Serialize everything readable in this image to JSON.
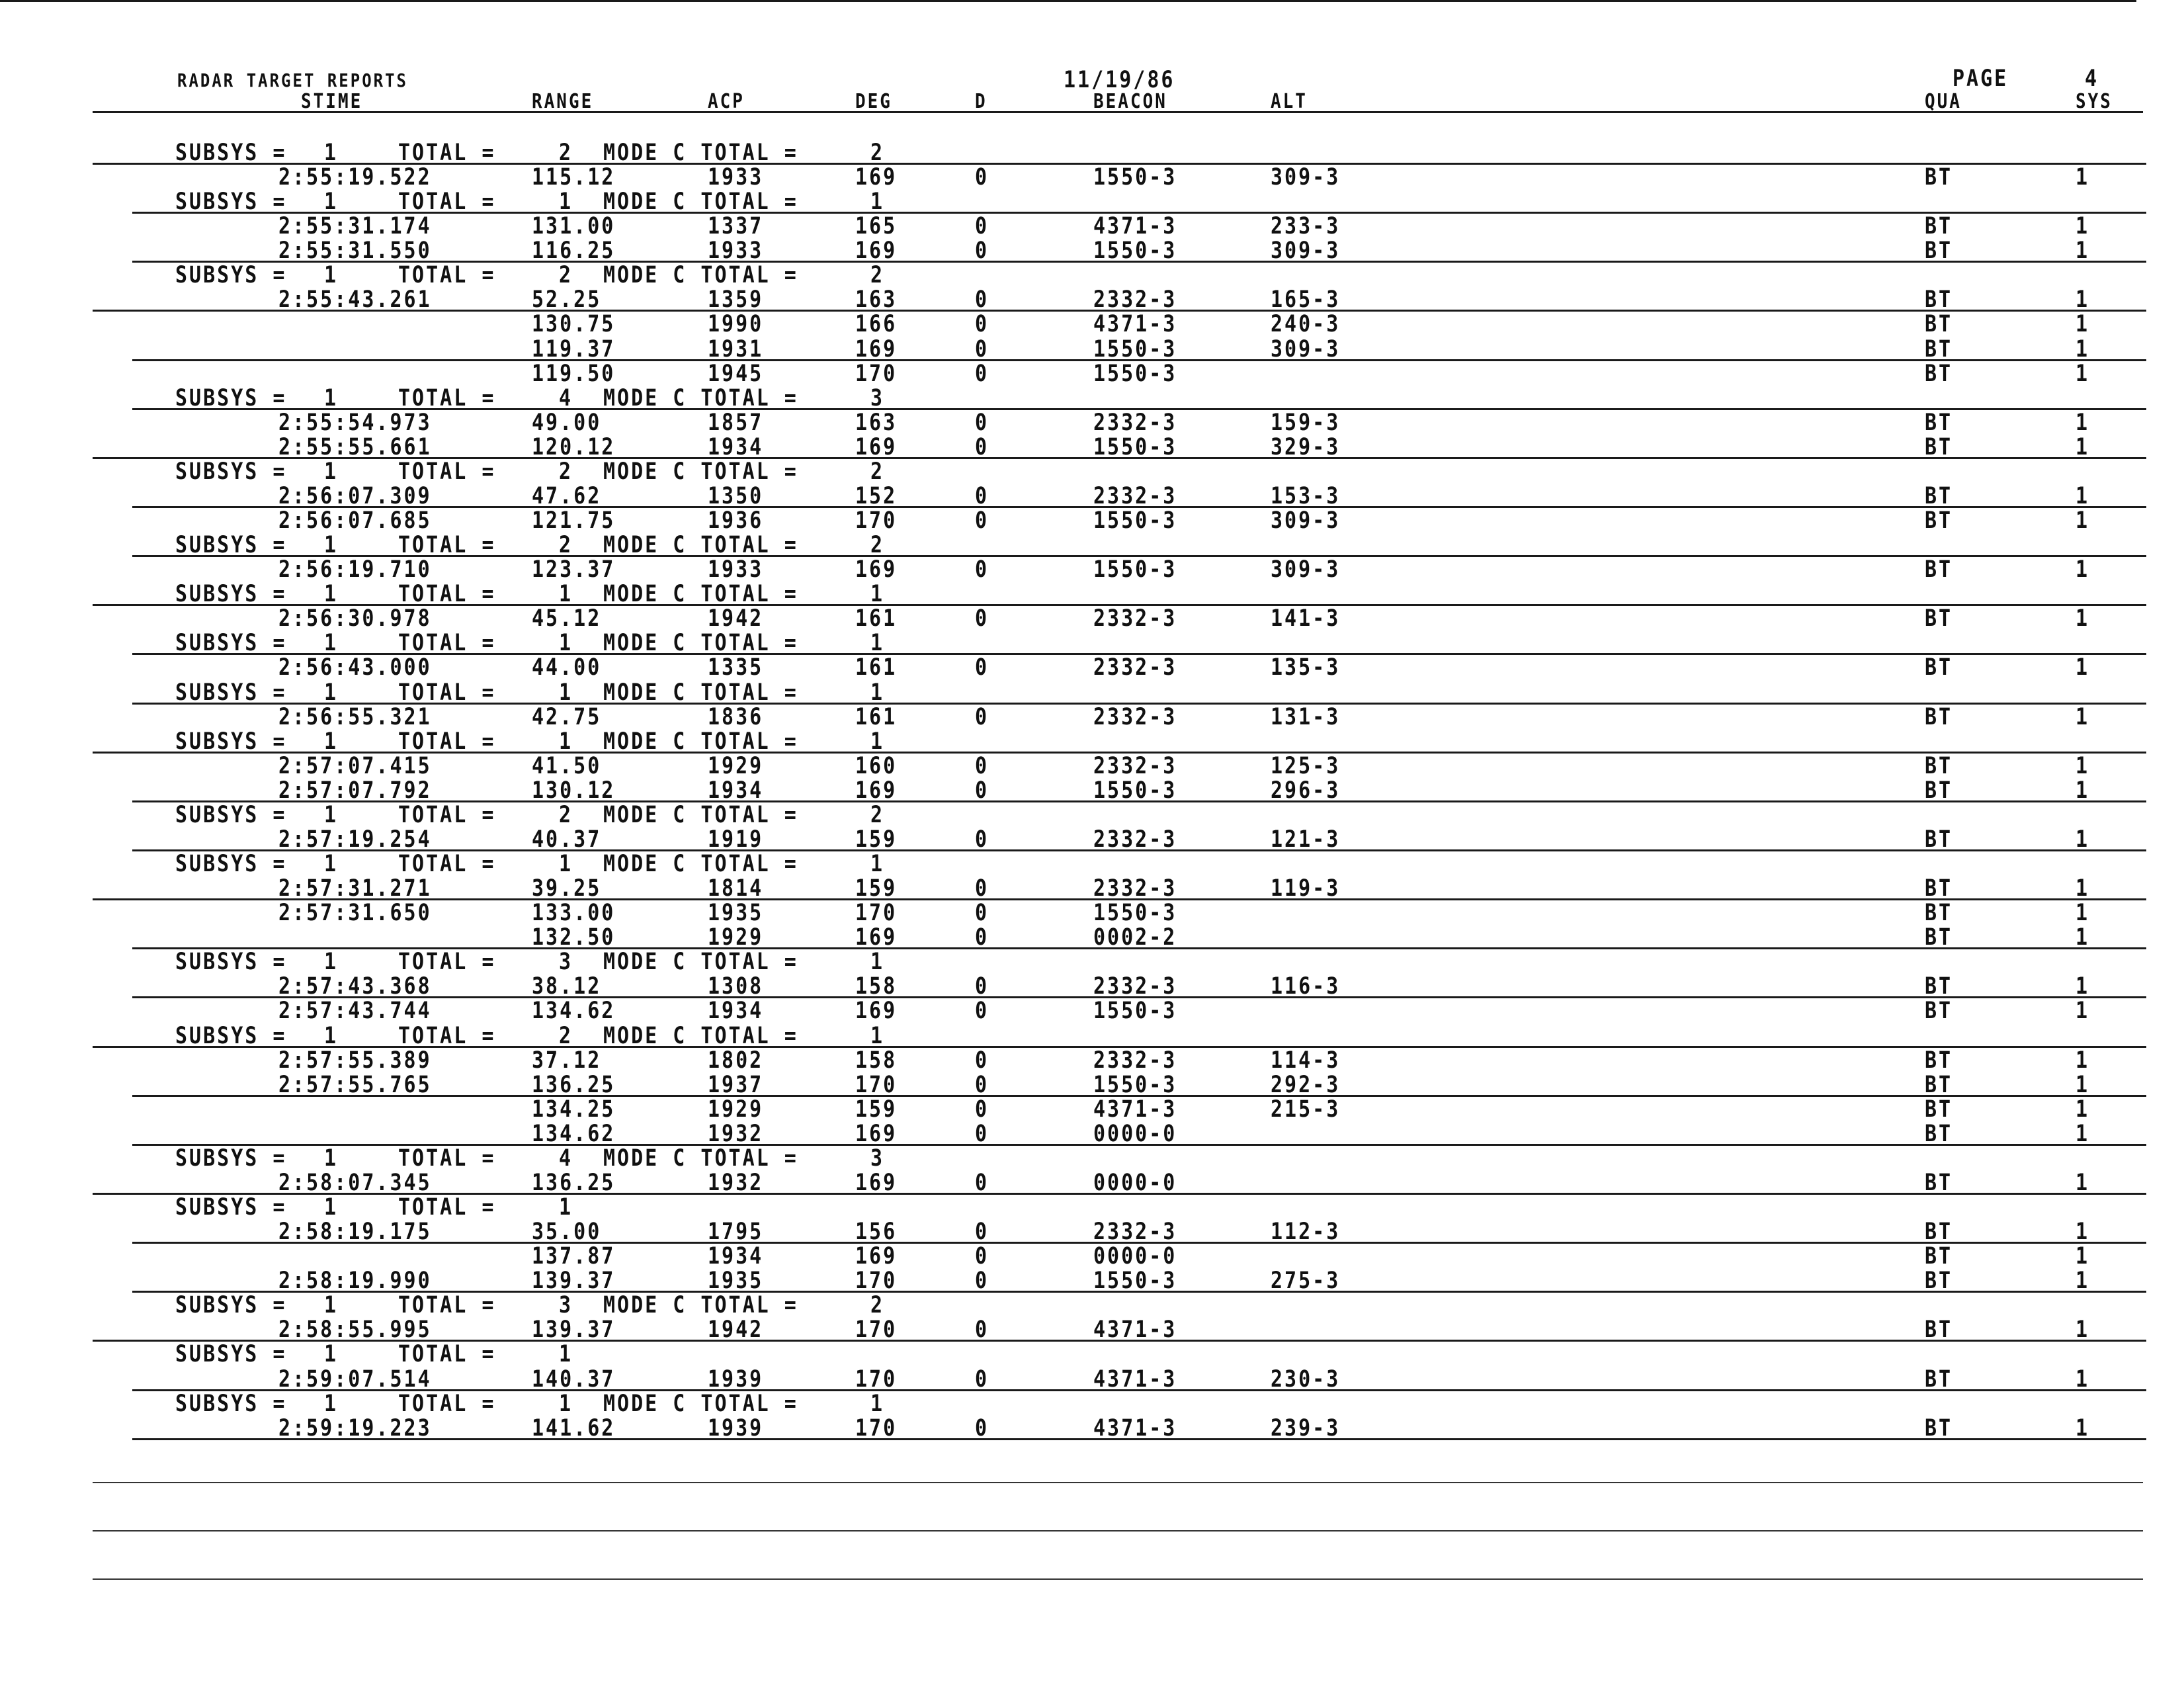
{
  "header": {
    "title": "RADAR TARGET REPORTS",
    "date": "11/19/86",
    "page_label": "PAGE",
    "page_number": "4",
    "columns": [
      "STIME",
      "RANGE",
      "ACP",
      "DEG",
      "D",
      "BEACON",
      "ALT",
      "QUA",
      "SYS"
    ]
  },
  "labels": {
    "subsys": "SUBSYS =",
    "total": "TOTAL =",
    "mode_c_total": "MODE C TOTAL ="
  },
  "rows": [
    {
      "type": "subsys",
      "subsys": "1",
      "total": "2",
      "mode_c": "2"
    },
    {
      "type": "data",
      "time": "2:55:19.522",
      "range": "115.12",
      "acp": "1933",
      "deg": "169",
      "d": "0",
      "beacon": "1550-3",
      "alt": "309-3",
      "qua": "BT",
      "sys": "1"
    },
    {
      "type": "subsys",
      "subsys": "1",
      "total": "1",
      "mode_c": "1"
    },
    {
      "type": "data",
      "time": "2:55:31.174",
      "range": "131.00",
      "acp": "1337",
      "deg": "165",
      "d": "0",
      "beacon": "4371-3",
      "alt": "233-3",
      "qua": "BT",
      "sys": "1"
    },
    {
      "type": "data",
      "time": "2:55:31.550",
      "range": "116.25",
      "acp": "1933",
      "deg": "169",
      "d": "0",
      "beacon": "1550-3",
      "alt": "309-3",
      "qua": "BT",
      "sys": "1"
    },
    {
      "type": "subsys",
      "subsys": "1",
      "total": "2",
      "mode_c": "2"
    },
    {
      "type": "data",
      "time": "2:55:43.261",
      "range": "52.25",
      "acp": "1359",
      "deg": "163",
      "d": "0",
      "beacon": "2332-3",
      "alt": "165-3",
      "qua": "BT",
      "sys": "1"
    },
    {
      "type": "data",
      "time": "",
      "range": "130.75",
      "acp": "1990",
      "deg": "166",
      "d": "0",
      "beacon": "4371-3",
      "alt": "240-3",
      "qua": "BT",
      "sys": "1"
    },
    {
      "type": "data",
      "time": "",
      "range": "119.37",
      "acp": "1931",
      "deg": "169",
      "d": "0",
      "beacon": "1550-3",
      "alt": "309-3",
      "qua": "BT",
      "sys": "1"
    },
    {
      "type": "data",
      "time": "",
      "range": "119.50",
      "acp": "1945",
      "deg": "170",
      "d": "0",
      "beacon": "1550-3",
      "alt": "",
      "qua": "BT",
      "sys": "1"
    },
    {
      "type": "subsys",
      "subsys": "1",
      "total": "4",
      "mode_c": "3"
    },
    {
      "type": "data",
      "time": "2:55:54.973",
      "range": "49.00",
      "acp": "1857",
      "deg": "163",
      "d": "0",
      "beacon": "2332-3",
      "alt": "159-3",
      "qua": "BT",
      "sys": "1"
    },
    {
      "type": "data",
      "time": "2:55:55.661",
      "range": "120.12",
      "acp": "1934",
      "deg": "169",
      "d": "0",
      "beacon": "1550-3",
      "alt": "329-3",
      "qua": "BT",
      "sys": "1"
    },
    {
      "type": "subsys",
      "subsys": "1",
      "total": "2",
      "mode_c": "2"
    },
    {
      "type": "data",
      "time": "2:56:07.309",
      "range": "47.62",
      "acp": "1350",
      "deg": "152",
      "d": "0",
      "beacon": "2332-3",
      "alt": "153-3",
      "qua": "BT",
      "sys": "1"
    },
    {
      "type": "data",
      "time": "2:56:07.685",
      "range": "121.75",
      "acp": "1936",
      "deg": "170",
      "d": "0",
      "beacon": "1550-3",
      "alt": "309-3",
      "qua": "BT",
      "sys": "1"
    },
    {
      "type": "subsys",
      "subsys": "1",
      "total": "2",
      "mode_c": "2"
    },
    {
      "type": "data",
      "time": "2:56:19.710",
      "range": "123.37",
      "acp": "1933",
      "deg": "169",
      "d": "0",
      "beacon": "1550-3",
      "alt": "309-3",
      "qua": "BT",
      "sys": "1"
    },
    {
      "type": "subsys",
      "subsys": "1",
      "total": "1",
      "mode_c": "1"
    },
    {
      "type": "data",
      "time": "2:56:30.978",
      "range": "45.12",
      "acp": "1942",
      "deg": "161",
      "d": "0",
      "beacon": "2332-3",
      "alt": "141-3",
      "qua": "BT",
      "sys": "1"
    },
    {
      "type": "subsys",
      "subsys": "1",
      "total": "1",
      "mode_c": "1"
    },
    {
      "type": "data",
      "time": "2:56:43.000",
      "range": "44.00",
      "acp": "1335",
      "deg": "161",
      "d": "0",
      "beacon": "2332-3",
      "alt": "135-3",
      "qua": "BT",
      "sys": "1"
    },
    {
      "type": "subsys",
      "subsys": "1",
      "total": "1",
      "mode_c": "1"
    },
    {
      "type": "data",
      "time": "2:56:55.321",
      "range": "42.75",
      "acp": "1836",
      "deg": "161",
      "d": "0",
      "beacon": "2332-3",
      "alt": "131-3",
      "qua": "BT",
      "sys": "1"
    },
    {
      "type": "subsys",
      "subsys": "1",
      "total": "1",
      "mode_c": "1"
    },
    {
      "type": "data",
      "time": "2:57:07.415",
      "range": "41.50",
      "acp": "1929",
      "deg": "160",
      "d": "0",
      "beacon": "2332-3",
      "alt": "125-3",
      "qua": "BT",
      "sys": "1"
    },
    {
      "type": "data",
      "time": "2:57:07.792",
      "range": "130.12",
      "acp": "1934",
      "deg": "169",
      "d": "0",
      "beacon": "1550-3",
      "alt": "296-3",
      "qua": "BT",
      "sys": "1"
    },
    {
      "type": "subsys",
      "subsys": "1",
      "total": "2",
      "mode_c": "2"
    },
    {
      "type": "data",
      "time": "2:57:19.254",
      "range": "40.37",
      "acp": "1919",
      "deg": "159",
      "d": "0",
      "beacon": "2332-3",
      "alt": "121-3",
      "qua": "BT",
      "sys": "1"
    },
    {
      "type": "subsys",
      "subsys": "1",
      "total": "1",
      "mode_c": "1"
    },
    {
      "type": "data",
      "time": "2:57:31.271",
      "range": "39.25",
      "acp": "1814",
      "deg": "159",
      "d": "0",
      "beacon": "2332-3",
      "alt": "119-3",
      "qua": "BT",
      "sys": "1"
    },
    {
      "type": "data",
      "time": "2:57:31.650",
      "range": "133.00",
      "acp": "1935",
      "deg": "170",
      "d": "0",
      "beacon": "1550-3",
      "alt": "",
      "qua": "BT",
      "sys": "1"
    },
    {
      "type": "data",
      "time": "",
      "range": "132.50",
      "acp": "1929",
      "deg": "169",
      "d": "0",
      "beacon": "0002-2",
      "alt": "",
      "qua": "BT",
      "sys": "1"
    },
    {
      "type": "subsys",
      "subsys": "1",
      "total": "3",
      "mode_c": "1"
    },
    {
      "type": "data",
      "time": "2:57:43.368",
      "range": "38.12",
      "acp": "1308",
      "deg": "158",
      "d": "0",
      "beacon": "2332-3",
      "alt": "116-3",
      "qua": "BT",
      "sys": "1"
    },
    {
      "type": "data",
      "time": "2:57:43.744",
      "range": "134.62",
      "acp": "1934",
      "deg": "169",
      "d": "0",
      "beacon": "1550-3",
      "alt": "",
      "qua": "BT",
      "sys": "1"
    },
    {
      "type": "subsys",
      "subsys": "1",
      "total": "2",
      "mode_c": "1"
    },
    {
      "type": "data",
      "time": "2:57:55.389",
      "range": "37.12",
      "acp": "1802",
      "deg": "158",
      "d": "0",
      "beacon": "2332-3",
      "alt": "114-3",
      "qua": "BT",
      "sys": "1"
    },
    {
      "type": "data",
      "time": "2:57:55.765",
      "range": "136.25",
      "acp": "1937",
      "deg": "170",
      "d": "0",
      "beacon": "1550-3",
      "alt": "292-3",
      "qua": "BT",
      "sys": "1"
    },
    {
      "type": "data",
      "time": "",
      "range": "134.25",
      "acp": "1929",
      "deg": "159",
      "d": "0",
      "beacon": "4371-3",
      "alt": "215-3",
      "qua": "BT",
      "sys": "1"
    },
    {
      "type": "data",
      "time": "",
      "range": "134.62",
      "acp": "1932",
      "deg": "169",
      "d": "0",
      "beacon": "0000-0",
      "alt": "",
      "qua": "BT",
      "sys": "1"
    },
    {
      "type": "subsys",
      "subsys": "1",
      "total": "4",
      "mode_c": "3"
    },
    {
      "type": "data",
      "time": "2:58:07.345",
      "range": "136.25",
      "acp": "1932",
      "deg": "169",
      "d": "0",
      "beacon": "0000-0",
      "alt": "",
      "qua": "BT",
      "sys": "1"
    },
    {
      "type": "subsys",
      "subsys": "1",
      "total": "1",
      "mode_c": ""
    },
    {
      "type": "data",
      "time": "2:58:19.175",
      "range": "35.00",
      "acp": "1795",
      "deg": "156",
      "d": "0",
      "beacon": "2332-3",
      "alt": "112-3",
      "qua": "BT",
      "sys": "1"
    },
    {
      "type": "data",
      "time": "",
      "range": "137.87",
      "acp": "1934",
      "deg": "169",
      "d": "0",
      "beacon": "0000-0",
      "alt": "",
      "qua": "BT",
      "sys": "1"
    },
    {
      "type": "data",
      "time": "2:58:19.990",
      "range": "139.37",
      "acp": "1935",
      "deg": "170",
      "d": "0",
      "beacon": "1550-3",
      "alt": "275-3",
      "qua": "BT",
      "sys": "1"
    },
    {
      "type": "subsys",
      "subsys": "1",
      "total": "3",
      "mode_c": "2"
    },
    {
      "type": "data",
      "time": "2:58:55.995",
      "range": "139.37",
      "acp": "1942",
      "deg": "170",
      "d": "0",
      "beacon": "4371-3",
      "alt": "",
      "qua": "BT",
      "sys": "1"
    },
    {
      "type": "subsys",
      "subsys": "1",
      "total": "1",
      "mode_c": ""
    },
    {
      "type": "data",
      "time": "2:59:07.514",
      "range": "140.37",
      "acp": "1939",
      "deg": "170",
      "d": "0",
      "beacon": "4371-3",
      "alt": "230-3",
      "qua": "BT",
      "sys": "1"
    },
    {
      "type": "subsys",
      "subsys": "1",
      "total": "1",
      "mode_c": "1"
    },
    {
      "type": "data",
      "time": "2:59:19.223",
      "range": "141.62",
      "acp": "1939",
      "deg": "170",
      "d": "0",
      "beacon": "4371-3",
      "alt": "239-3",
      "qua": "BT",
      "sys": "1"
    }
  ]
}
